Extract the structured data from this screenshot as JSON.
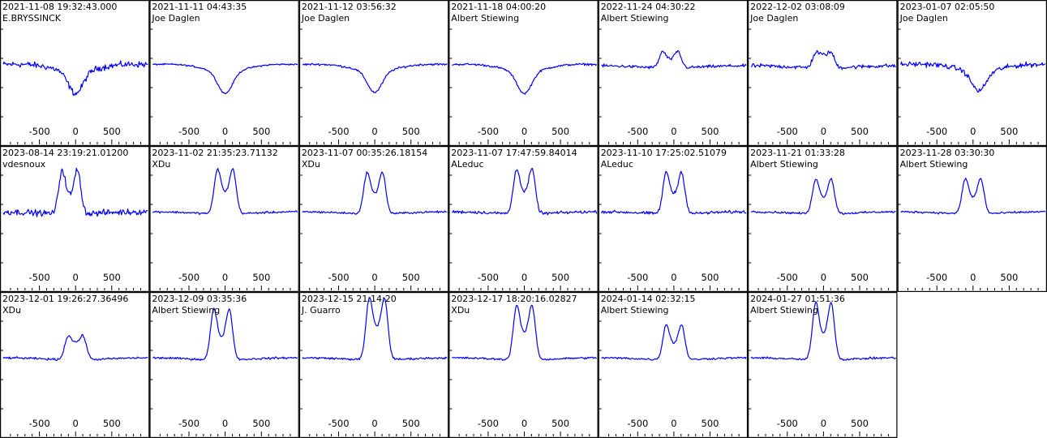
{
  "colors": {
    "line": "#0000ff",
    "frame": "#000000",
    "background": "#ffffff"
  },
  "chart_data": {
    "type": "line",
    "layout": {
      "rows": 3,
      "cols": 7
    },
    "xlim": [
      -1000,
      1000
    ],
    "x_ticks": [
      -500,
      0,
      500
    ],
    "grid": false,
    "panels": [
      {
        "date": "2021-11-08 19:32:43.000",
        "observer": "E.BRYSSINCK",
        "shape": "dip",
        "depth": 0.4,
        "noise": 0.06,
        "shift": 0
      },
      {
        "date": "2021-11-11 04:43:35",
        "observer": "Joe Daglen",
        "shape": "dip",
        "depth": 0.4,
        "noise": 0.015,
        "shift": 0
      },
      {
        "date": "2021-11-12 03:56:32",
        "observer": "Joe Daglen",
        "shape": "dip",
        "depth": 0.38,
        "noise": 0.02,
        "shift": 0
      },
      {
        "date": "2021-11-18 04:00:20",
        "observer": "Albert Stiewing",
        "shape": "dip",
        "depth": 0.4,
        "noise": 0.02,
        "shift": 0
      },
      {
        "date": "2022-11-24 04:30:22",
        "observer": "Albert Stiewing",
        "shape": "double",
        "height": 0.25,
        "noise": 0.03,
        "shift": -50,
        "dip": 0.0
      },
      {
        "date": "2022-12-02 03:08:09",
        "observer": "Joe Daglen",
        "shape": "double",
        "height": 0.22,
        "noise": 0.04,
        "shift": 0,
        "dip": -0.1
      },
      {
        "date": "2023-01-07 02:05:50",
        "observer": "Joe Daglen",
        "shape": "dip",
        "depth": 0.35,
        "noise": 0.05,
        "shift": 80
      },
      {
        "date": "2023-08-14 23:19:21.01200",
        "observer": "vdesnoux",
        "shape": "double",
        "height": 0.7,
        "noise": 0.06,
        "shift": -80,
        "dip": 0.1
      },
      {
        "date": "2023-11-02 21:35:23.71132",
        "observer": "XDu",
        "shape": "double",
        "height": 0.7,
        "noise": 0.02,
        "shift": 0,
        "dip": 0.05
      },
      {
        "date": "2023-11-07 00:35:26.18154",
        "observer": "XDu",
        "shape": "double",
        "height": 0.65,
        "noise": 0.02,
        "shift": 0,
        "dip": 0.05
      },
      {
        "date": "2023-11-07 17:47:59.84014",
        "observer": "ALeduc",
        "shape": "double",
        "height": 0.7,
        "noise": 0.03,
        "shift": 0,
        "dip": 0.05
      },
      {
        "date": "2023-11-10 17:25:02.51079",
        "observer": "ALeduc",
        "shape": "double",
        "height": 0.65,
        "noise": 0.03,
        "shift": 0,
        "dip": 0.05
      },
      {
        "date": "2023-11-21 01:33:28",
        "observer": "Albert Stiewing",
        "shape": "double",
        "height": 0.55,
        "noise": 0.02,
        "shift": 0,
        "dip": 0.05
      },
      {
        "date": "2023-11-28 03:30:30",
        "observer": "Albert Stiewing",
        "shape": "double",
        "height": 0.55,
        "noise": 0.02,
        "shift": 0,
        "dip": 0.05
      },
      {
        "date": "2023-12-01 19:26:27.36496",
        "observer": "XDu",
        "shape": "double",
        "height": 0.35,
        "noise": 0.02,
        "shift": 0,
        "dip": -0.1
      },
      {
        "date": "2023-12-09 03:35:36",
        "observer": "Albert Stiewing",
        "shape": "double",
        "height": 0.8,
        "noise": 0.02,
        "shift": -50,
        "dip": 0.1
      },
      {
        "date": "2023-12-15 21:14:20",
        "observer": "J. Guarro",
        "shape": "double",
        "height": 0.95,
        "noise": 0.02,
        "shift": 30,
        "dip": 0.0
      },
      {
        "date": "2023-12-17 18:20:16.02827",
        "observer": "XDu",
        "shape": "double",
        "height": 0.85,
        "noise": 0.02,
        "shift": 0,
        "dip": 0.05
      },
      {
        "date": "2024-01-14 02:32:15",
        "observer": "Albert Stiewing",
        "shape": "double",
        "height": 0.55,
        "noise": 0.02,
        "shift": 0,
        "dip": 0.05
      },
      {
        "date": "2024-01-27 01:51:36",
        "observer": "Albert Stiewing",
        "shape": "double",
        "height": 0.9,
        "noise": 0.02,
        "shift": 0,
        "dip": 0.1
      }
    ]
  }
}
